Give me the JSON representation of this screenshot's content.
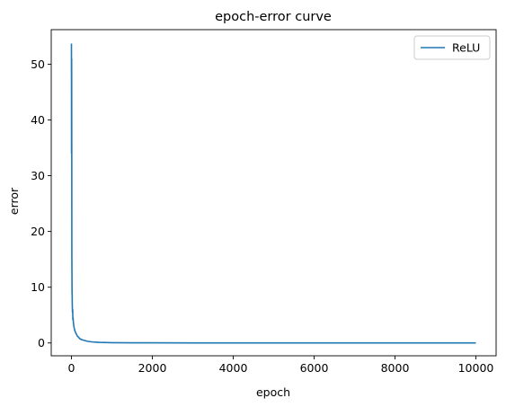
{
  "chart_data": {
    "type": "line",
    "title": "epoch-error curve",
    "xlabel": "epoch",
    "ylabel": "error",
    "xlim": [
      -500,
      10500
    ],
    "ylim": [
      -2.3,
      56.2
    ],
    "xticks": [
      0,
      2000,
      4000,
      6000,
      8000,
      10000
    ],
    "yticks": [
      0,
      10,
      20,
      30,
      40,
      50
    ],
    "grid": false,
    "legend": "top-right",
    "series": [
      {
        "name": "ReLU",
        "color": "#1f77b4",
        "x": [
          0,
          2,
          5,
          8,
          10,
          12,
          15,
          18,
          20,
          25,
          30,
          35,
          40,
          50,
          60,
          70,
          80,
          100,
          120,
          150,
          180,
          200,
          250,
          300,
          350,
          400,
          500,
          600,
          700,
          800,
          1000,
          1500,
          2000,
          3000,
          4000,
          5000,
          6000,
          7000,
          8000,
          9000,
          10000
        ],
        "y": [
          53.7,
          34.0,
          51.0,
          33.5,
          15.5,
          13.0,
          9.0,
          8.5,
          7.0,
          5.5,
          6.0,
          4.2,
          4.5,
          3.5,
          3.0,
          2.6,
          2.3,
          1.9,
          1.6,
          1.2,
          1.0,
          0.8,
          0.6,
          0.5,
          0.4,
          0.3,
          0.2,
          0.15,
          0.1,
          0.08,
          0.05,
          0.03,
          0.02,
          0.015,
          0.01,
          0.01,
          0.01,
          0.01,
          0.01,
          0.01,
          0.01
        ]
      }
    ]
  }
}
